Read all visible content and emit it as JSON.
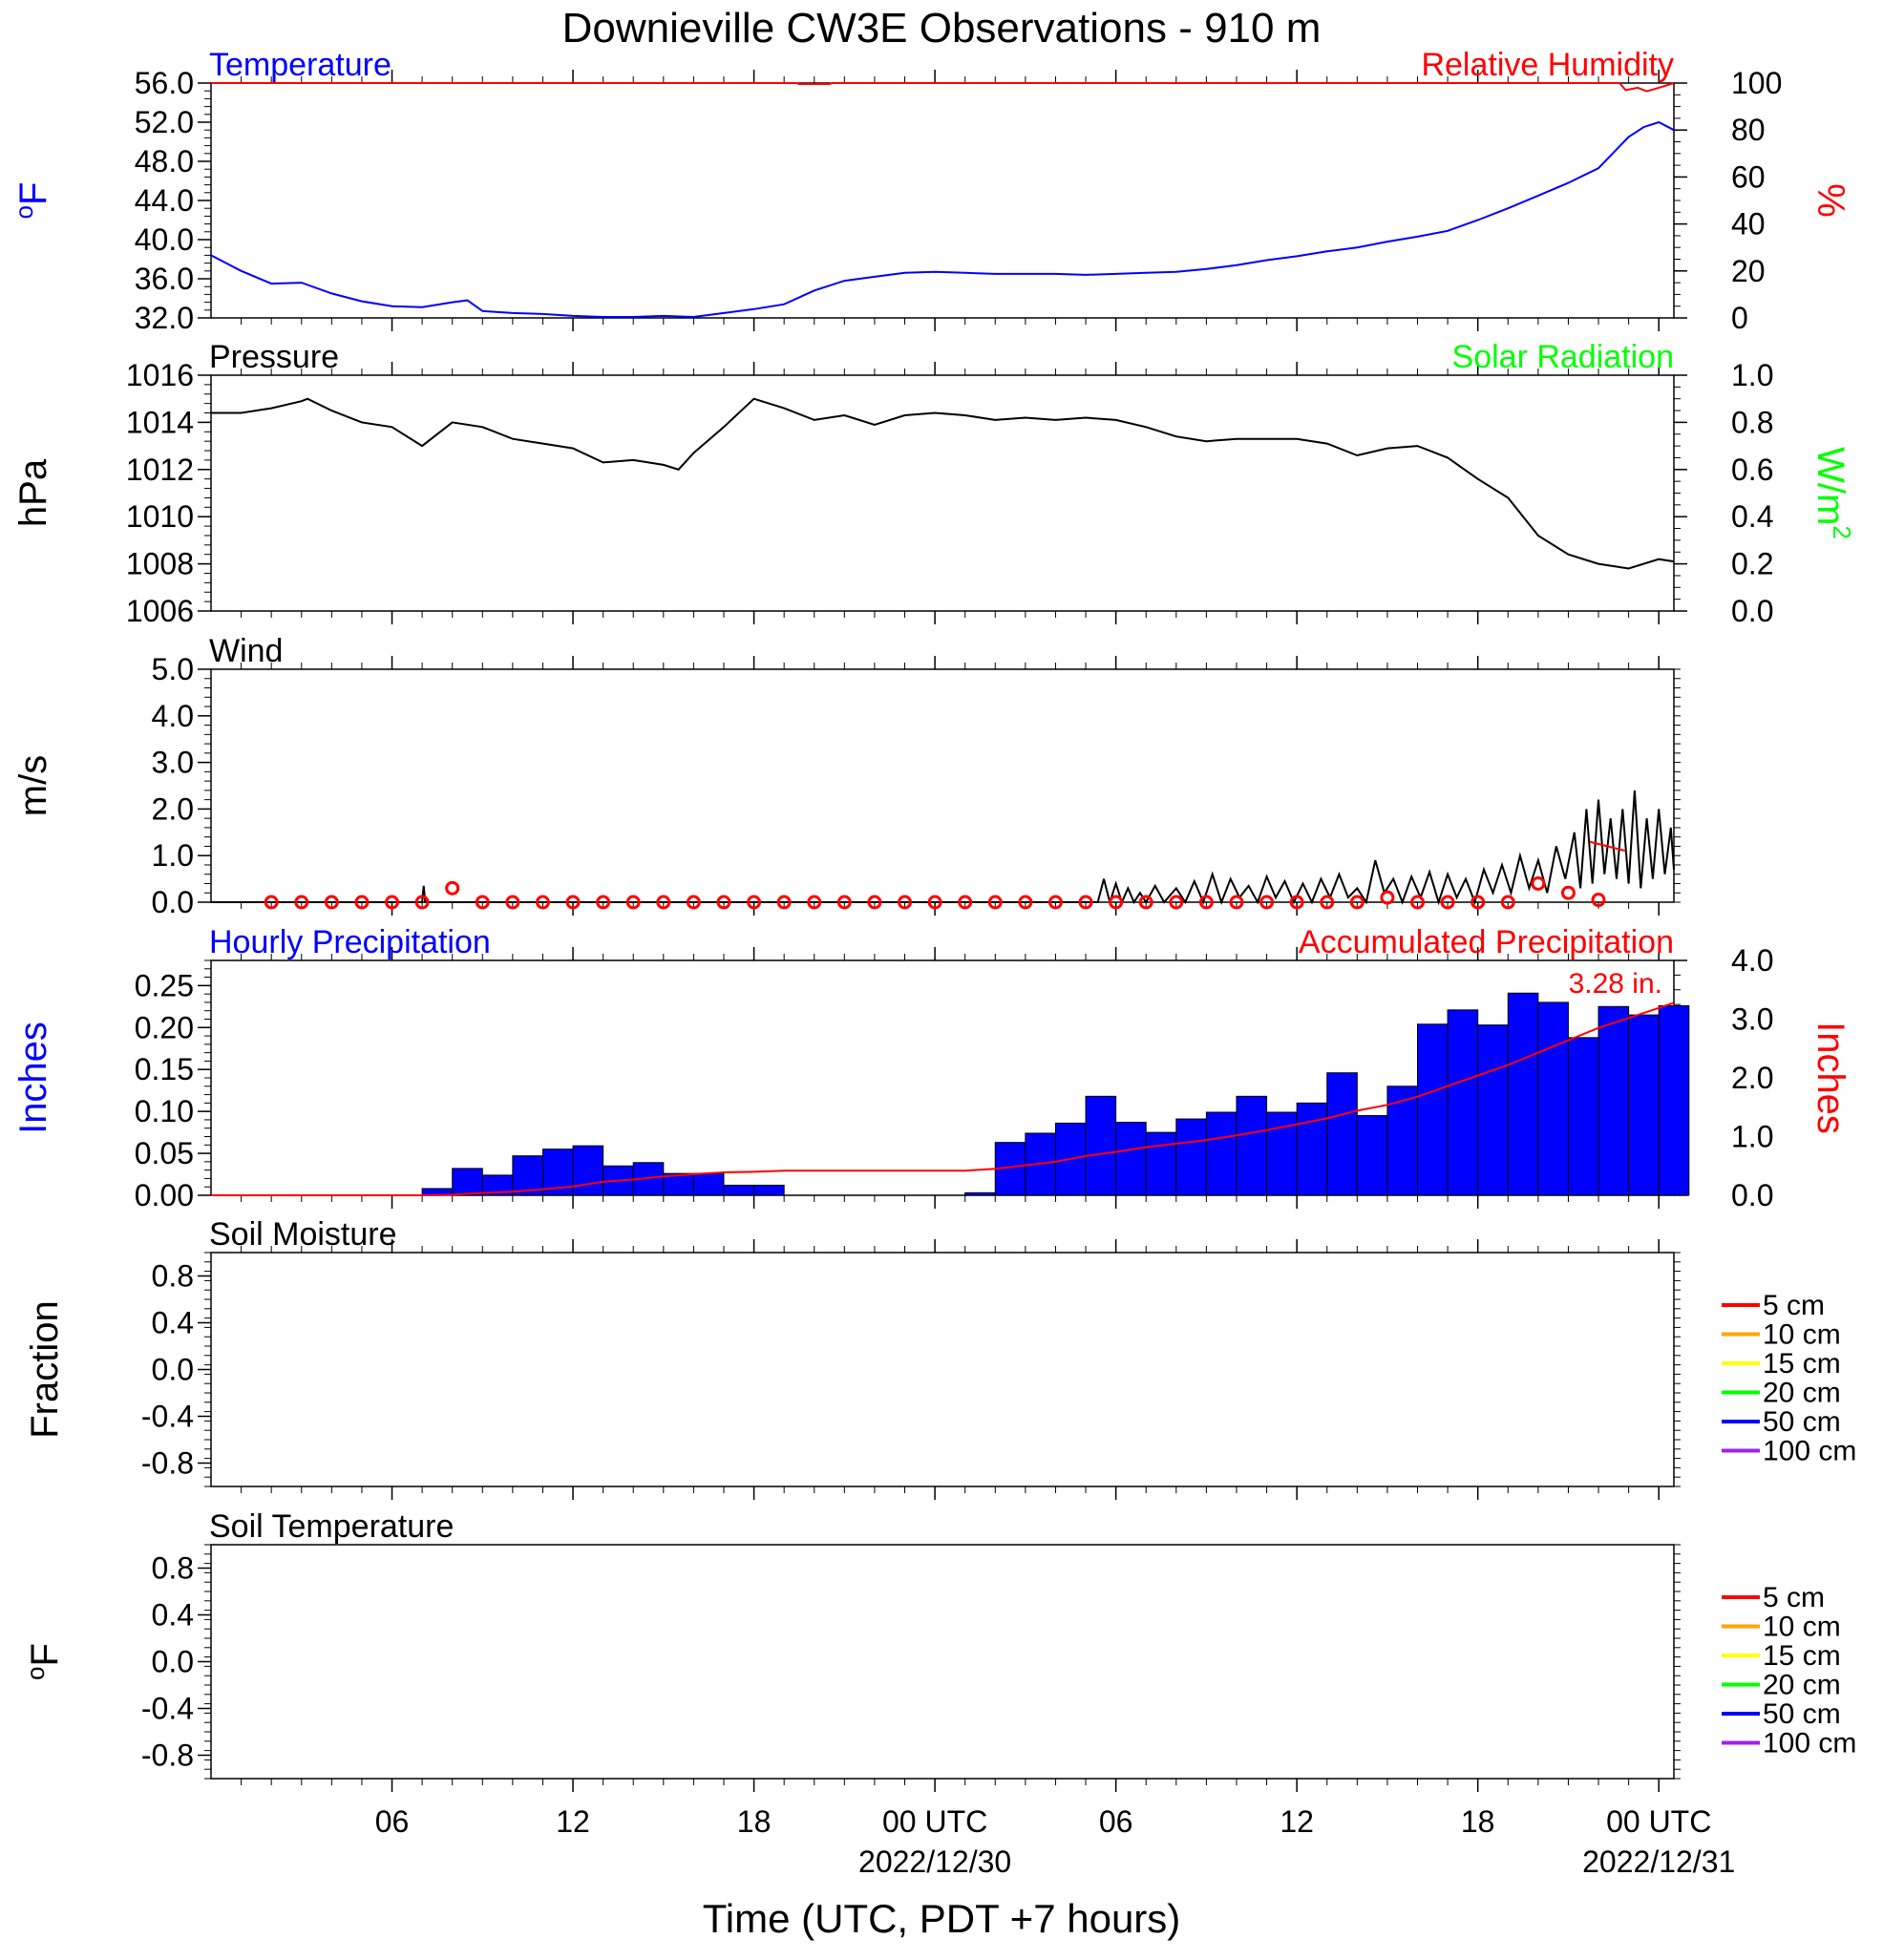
{
  "title": "Downieville CW3E Observations - 910 m",
  "xaxis": {
    "xlabel": "Time (UTC, PDT +7 hours)",
    "tick_labels": [
      {
        "hour": 6,
        "label": "06",
        "date": ""
      },
      {
        "hour": 12,
        "label": "12",
        "date": ""
      },
      {
        "hour": 18,
        "label": "18",
        "date": ""
      },
      {
        "hour": 24,
        "label": "00 UTC",
        "date": "2022/12/30"
      },
      {
        "hour": 30,
        "label": "06",
        "date": ""
      },
      {
        "hour": 36,
        "label": "12",
        "date": ""
      },
      {
        "hour": 42,
        "label": "18",
        "date": ""
      },
      {
        "hour": 48,
        "label": "00 UTC",
        "date": "2022/12/31"
      }
    ]
  },
  "colors": {
    "temperature": "#0000ff",
    "humidity": "#ff0000",
    "pressure": "#000000",
    "solar": "#00ff00",
    "hourly_precip": "#0000ff",
    "accum_precip": "#ff0000",
    "legend": [
      "#ff0000",
      "#ffa500",
      "#ffff00",
      "#00ff00",
      "#0000ff",
      "#a020f0"
    ]
  },
  "chart_data": [
    {
      "id": "temperature",
      "type": "line",
      "title_left": "Temperature",
      "title_right": "Relative Humidity",
      "ylabel_left": "oF",
      "ylabel_right": "%",
      "ylim": [
        32,
        56
      ],
      "y2lim": [
        0,
        100
      ],
      "yticks": [
        "32.0",
        "36.0",
        "40.0",
        "44.0",
        "48.0",
        "52.0",
        "56.0"
      ],
      "y2ticks": [
        "0",
        "20",
        "40",
        "60",
        "80",
        "100"
      ],
      "series": [
        {
          "name": "Temperature",
          "x": [
            0,
            1,
            2,
            3,
            4,
            5,
            6,
            7,
            8,
            8.5,
            9,
            10,
            11,
            12,
            13,
            14,
            15,
            16,
            17,
            18,
            19,
            20,
            21,
            22,
            23,
            24,
            25,
            26,
            27,
            28,
            29,
            30,
            31,
            32,
            33,
            34,
            35,
            36,
            37,
            38,
            39,
            40,
            41,
            42,
            43,
            44,
            45,
            46,
            47,
            47.5,
            48,
            48.5
          ],
          "y": [
            38.4,
            36.8,
            35.5,
            35.6,
            34.5,
            33.7,
            33.2,
            33.1,
            33.6,
            33.8,
            32.7,
            32.5,
            32.4,
            32.2,
            32.1,
            32.1,
            32.2,
            32.1,
            32.5,
            32.9,
            33.4,
            34.8,
            35.8,
            36.2,
            36.6,
            36.7,
            36.6,
            36.5,
            36.5,
            36.5,
            36.4,
            36.5,
            36.6,
            36.7,
            37.0,
            37.4,
            37.9,
            38.3,
            38.8,
            39.2,
            39.8,
            40.3,
            40.9,
            42.0,
            43.2,
            44.5,
            45.8,
            47.3,
            50.5,
            51.5,
            52.0,
            51.2
          ]
        },
        {
          "name": "Relative Humidity",
          "axis": "right",
          "x": [
            0,
            19.4,
            19.5,
            20.5,
            20.6,
            46.7,
            46.9,
            47.3,
            47.6,
            48.0,
            48.5
          ],
          "y": [
            100,
            100,
            99.6,
            99.6,
            100,
            100,
            97,
            98,
            96.5,
            98,
            100
          ]
        }
      ]
    },
    {
      "id": "pressure",
      "type": "line",
      "title_left": "Pressure",
      "title_right": "Solar Radiation",
      "ylabel_left": "hPa",
      "ylabel_right": "W/m2",
      "ylim": [
        1006,
        1016
      ],
      "y2lim": [
        0,
        1
      ],
      "yticks": [
        "1006",
        "1008",
        "1010",
        "1012",
        "1014",
        "1016"
      ],
      "y2ticks": [
        "0.0",
        "0.2",
        "0.4",
        "0.6",
        "0.8",
        "1.0"
      ],
      "series": [
        {
          "name": "Pressure",
          "x": [
            0,
            1,
            2,
            3,
            3.2,
            4,
            5,
            6,
            7,
            8,
            9,
            10,
            11,
            12,
            13,
            14,
            15,
            15.5,
            16,
            17,
            18,
            19,
            20,
            21,
            22,
            23,
            24,
            25,
            26,
            27,
            28,
            29,
            30,
            31,
            32,
            33,
            34,
            35,
            36,
            37,
            38,
            39,
            40,
            41,
            42,
            43,
            44,
            45,
            46,
            47,
            48,
            48.5
          ],
          "y": [
            1014.4,
            1014.4,
            1014.6,
            1014.9,
            1015.0,
            1014.5,
            1014.0,
            1013.8,
            1013.0,
            1014.0,
            1013.8,
            1013.3,
            1013.1,
            1012.9,
            1012.3,
            1012.4,
            1012.2,
            1012.0,
            1012.7,
            1013.8,
            1015.0,
            1014.6,
            1014.1,
            1014.3,
            1013.9,
            1014.3,
            1014.4,
            1014.3,
            1014.1,
            1014.2,
            1014.1,
            1014.2,
            1014.1,
            1013.8,
            1013.4,
            1013.2,
            1013.3,
            1013.3,
            1013.3,
            1013.1,
            1012.6,
            1012.9,
            1013.0,
            1012.5,
            1011.6,
            1010.8,
            1009.2,
            1008.4,
            1008.0,
            1007.8,
            1008.2,
            1008.1
          ]
        }
      ]
    },
    {
      "id": "wind",
      "type": "line",
      "title_left": "Wind",
      "ylabel_left": "m/s",
      "ylim": [
        0,
        5
      ],
      "yticks": [
        "0.0",
        "1.0",
        "2.0",
        "3.0",
        "4.0",
        "5.0"
      ],
      "series": [
        {
          "name": "Wind speed",
          "x": [
            0,
            7.0,
            7.05,
            7.1,
            7.15,
            29.4,
            29.6,
            29.8,
            30,
            30.2,
            30.4,
            30.6,
            30.8,
            31,
            31.3,
            31.6,
            32,
            32.3,
            32.6,
            32.9,
            33.2,
            33.5,
            33.8,
            34.1,
            34.4,
            34.7,
            35,
            35.3,
            35.6,
            35.9,
            36.2,
            36.5,
            36.8,
            37.1,
            37.4,
            37.7,
            38,
            38.3,
            38.6,
            38.9,
            39.2,
            39.5,
            39.8,
            40.1,
            40.4,
            40.7,
            41,
            41.3,
            41.6,
            41.9,
            42.2,
            42.5,
            42.8,
            43.1,
            43.4,
            43.7,
            44,
            44.3,
            44.6,
            44.9,
            45.2,
            45.4,
            45.6,
            45.8,
            46,
            46.2,
            46.4,
            46.6,
            46.8,
            47,
            47.2,
            47.4,
            47.6,
            47.8,
            48,
            48.2,
            48.4,
            48.5
          ],
          "y": [
            0,
            0,
            0.35,
            0,
            0,
            0,
            0.5,
            0,
            0.4,
            0,
            0.3,
            0,
            0.2,
            0,
            0.35,
            0,
            0.3,
            0,
            0.45,
            0,
            0.6,
            0,
            0.5,
            0.1,
            0.35,
            0,
            0.55,
            0.1,
            0.45,
            0,
            0.4,
            0,
            0.5,
            0.1,
            0.6,
            0.1,
            0.3,
            0,
            0.9,
            0.2,
            0.5,
            0,
            0.55,
            0.1,
            0.65,
            0,
            0.6,
            0.1,
            0.5,
            0,
            0.7,
            0.2,
            0.8,
            0.2,
            1.0,
            0.3,
            0.9,
            0.2,
            1.2,
            0.5,
            1.5,
            0.3,
            2.0,
            0.4,
            2.2,
            0.6,
            1.8,
            0.5,
            2.0,
            0.4,
            2.4,
            0.3,
            1.8,
            0.5,
            2.0,
            0.6,
            1.6,
            0.7
          ]
        },
        {
          "name": "Hourly wind",
          "x": [
            2,
            3,
            4,
            5,
            6,
            7,
            8,
            9,
            10,
            11,
            12,
            13,
            14,
            15,
            16,
            17,
            18,
            19,
            20,
            21,
            22,
            23,
            24,
            25,
            26,
            27,
            28,
            29,
            30,
            31,
            32,
            33,
            34,
            35,
            36,
            37,
            38,
            39,
            40,
            41,
            42,
            43,
            44,
            45,
            46
          ],
          "y": [
            0,
            0,
            0,
            0,
            0,
            0,
            0.3,
            0,
            0,
            0,
            0,
            0,
            0,
            0,
            0,
            0,
            0,
            0,
            0,
            0,
            0,
            0,
            0,
            0,
            0,
            0,
            0,
            0,
            0,
            0,
            0,
            0,
            0,
            0,
            0,
            0,
            0,
            0.1,
            0,
            0,
            0,
            0,
            0.4,
            0.2,
            0.05
          ]
        },
        {
          "name": "Gust",
          "x": [
            45.7,
            46.9
          ],
          "y": [
            1.3,
            1.1
          ]
        }
      ]
    },
    {
      "id": "precip",
      "type": "bar",
      "title_left": "Hourly Precipitation",
      "title_right": "Accumulated Precipitation",
      "annotation": "3.28 in.",
      "ylabel_left": "Inches",
      "ylabel_right": "Inches",
      "ylim": [
        0,
        0.28
      ],
      "y2lim": [
        0,
        4.0
      ],
      "yticks": [
        "0.00",
        "0.05",
        "0.10",
        "0.15",
        "0.20",
        "0.25"
      ],
      "y2ticks": [
        "0.0",
        "1.0",
        "2.0",
        "3.0",
        "4.0"
      ],
      "series": [
        {
          "name": "Hourly Precipitation",
          "start": [
            7,
            8,
            9,
            10,
            11,
            12,
            13,
            14,
            15,
            16,
            17,
            18,
            19,
            20,
            21,
            22,
            23,
            24,
            25,
            26,
            27,
            28,
            29,
            30,
            31,
            32,
            33,
            34,
            35,
            36,
            37,
            38,
            39,
            40,
            41,
            42,
            43,
            44,
            45,
            46,
            47,
            48
          ],
          "values": [
            0.008,
            0.032,
            0.024,
            0.047,
            0.055,
            0.059,
            0.035,
            0.039,
            0.026,
            0.026,
            0.012,
            0.012,
            0,
            0,
            0,
            0,
            0,
            0,
            0.003,
            0.063,
            0.074,
            0.086,
            0.118,
            0.087,
            0.075,
            0.091,
            0.099,
            0.118,
            0.099,
            0.11,
            0.146,
            0.095,
            0.13,
            0.204,
            0.221,
            0.203,
            0.241,
            0.23,
            0.188,
            0.225,
            0.215,
            0.226
          ]
        },
        {
          "name": "Accumulated Precipitation",
          "axis": "right",
          "x": [
            0,
            7,
            8,
            9,
            10,
            11,
            12,
            13,
            14,
            15,
            16,
            17,
            18,
            19,
            20,
            24,
            25,
            26,
            27,
            28,
            29,
            30,
            31,
            32,
            33,
            34,
            35,
            36,
            37,
            38,
            39,
            40,
            41,
            42,
            43,
            44,
            45,
            46,
            47,
            48,
            48.5
          ],
          "y": [
            0,
            0,
            0.01,
            0.04,
            0.06,
            0.1,
            0.15,
            0.23,
            0.27,
            0.32,
            0.36,
            0.39,
            0.4,
            0.42,
            0.42,
            0.42,
            0.42,
            0.45,
            0.51,
            0.57,
            0.67,
            0.74,
            0.82,
            0.88,
            0.94,
            1.02,
            1.11,
            1.21,
            1.31,
            1.44,
            1.54,
            1.68,
            1.86,
            2.04,
            2.22,
            2.43,
            2.64,
            2.85,
            3.02,
            3.19,
            3.28
          ]
        }
      ]
    },
    {
      "id": "soil-moisture",
      "type": "line",
      "title_left": "Soil Moisture",
      "ylabel_left": "Fraction",
      "ylim": [
        -1,
        1
      ],
      "yticks": [
        "-0.8",
        "-0.4",
        "0.0",
        "0.4",
        "0.8"
      ],
      "legend": [
        "5 cm",
        "10 cm",
        "15 cm",
        "20 cm",
        "50 cm",
        "100 cm"
      ],
      "series": []
    },
    {
      "id": "soil-temperature",
      "type": "line",
      "title_left": "Soil Temperature",
      "ylabel_left": "oF",
      "ylim": [
        -1,
        1
      ],
      "yticks": [
        "-0.8",
        "-0.4",
        "0.0",
        "0.4",
        "0.8"
      ],
      "legend": [
        "5 cm",
        "10 cm",
        "15 cm",
        "20 cm",
        "50 cm",
        "100 cm"
      ],
      "series": []
    }
  ]
}
